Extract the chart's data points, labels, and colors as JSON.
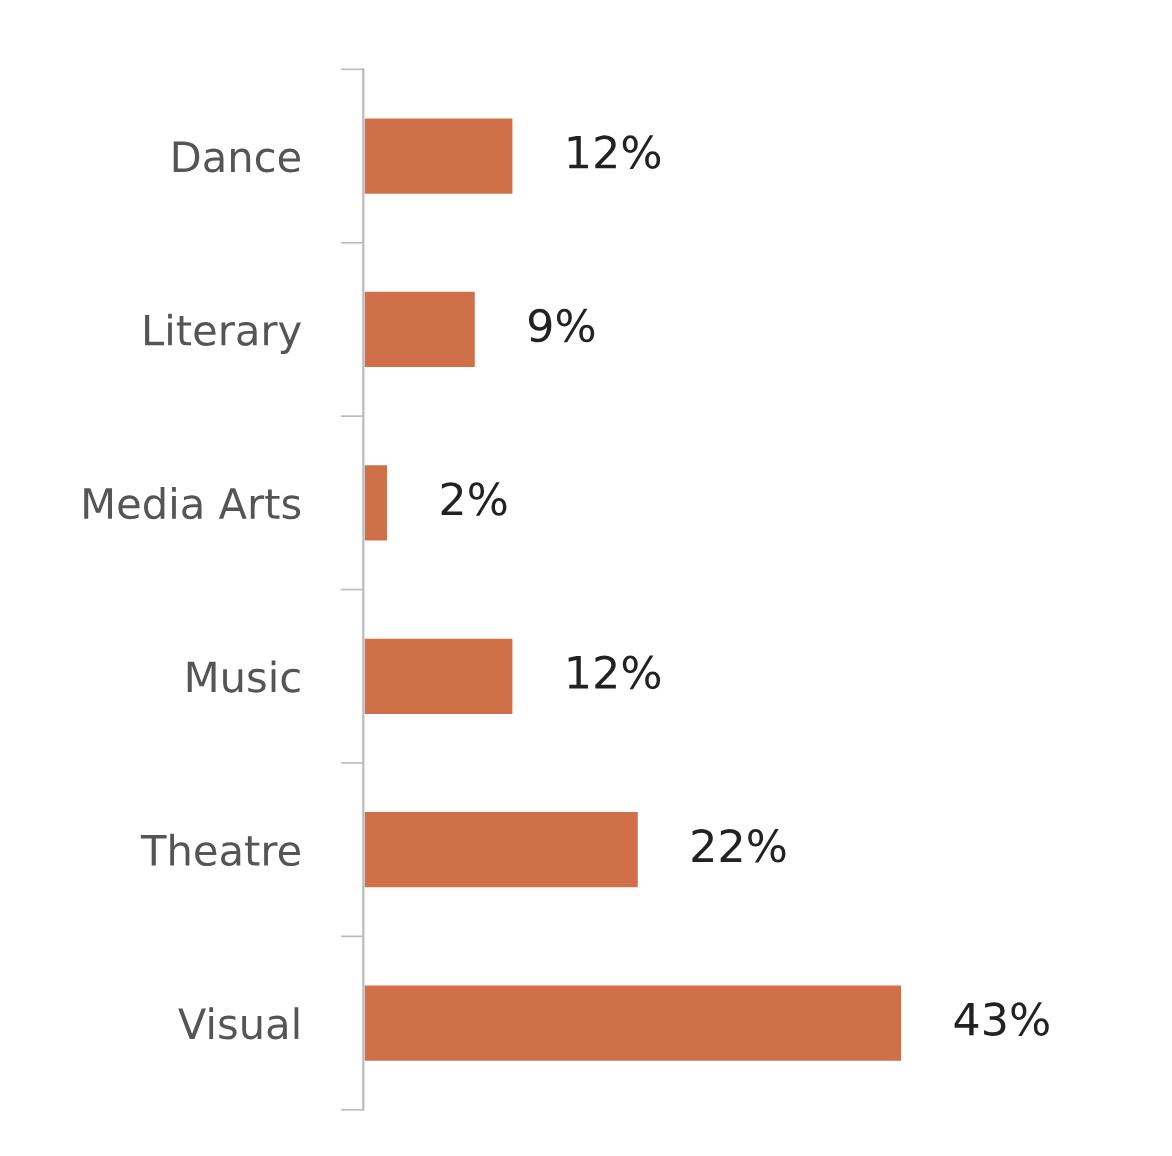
{
  "chart_data": {
    "type": "bar",
    "orientation": "horizontal",
    "categories": [
      "Dance",
      "Literary",
      "Media Arts",
      "Music",
      "Theatre",
      "Visual"
    ],
    "values": [
      12,
      9,
      2,
      12,
      22,
      43
    ],
    "value_labels": [
      "12%",
      "9%",
      "2%",
      "12%",
      "22%",
      "43%"
    ],
    "color": "#d07048",
    "grid": false,
    "legend": false
  }
}
